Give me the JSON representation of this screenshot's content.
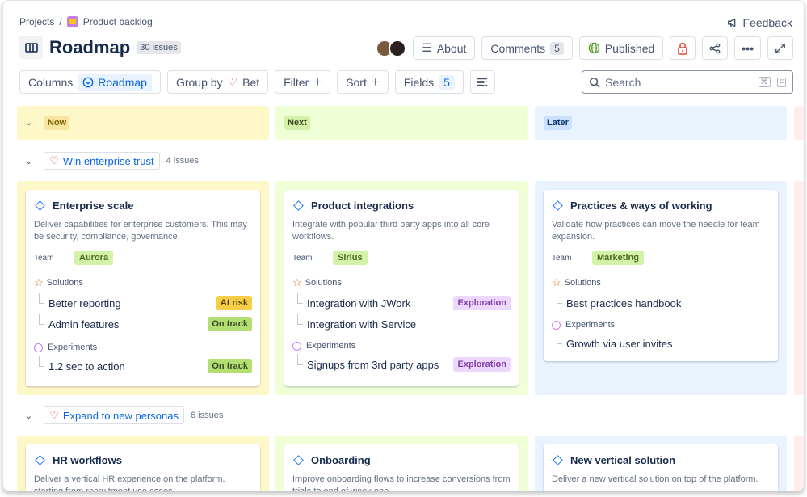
{
  "breadcrumb": {
    "root": "Projects",
    "separator": "/",
    "project": "Product backlog"
  },
  "feedback": "Feedback",
  "header": {
    "title": "Roadmap",
    "issue_count": "30 issues",
    "about": "About",
    "comments": "Comments",
    "comments_count": "5",
    "published": "Published"
  },
  "toolbar": {
    "columns": "Columns",
    "columns_value": "Roadmap",
    "group_by": "Group by",
    "group_value": "Bet",
    "filter": "Filter",
    "sort": "Sort",
    "fields": "Fields",
    "fields_count": "5",
    "search_placeholder": "Search",
    "kbd1": "⌘",
    "kbd2": "F"
  },
  "columns": [
    {
      "label": "Now",
      "color": "#f8e6a0"
    },
    {
      "label": "Next",
      "color": "#d3f1a7"
    },
    {
      "label": "Later",
      "color": "#cce0ff"
    }
  ],
  "groups": [
    {
      "label": "Win enterprise trust",
      "count": "4 issues",
      "cards": [
        {
          "title": "Enterprise scale",
          "desc": "Deliver capabilities for enterprise customers. This may be security, compliance, governance.",
          "team_label": "Team",
          "team": "Aurora",
          "solutions_label": "Solutions",
          "solutions": [
            {
              "name": "Better reporting",
              "status": "At risk"
            },
            {
              "name": "Admin features",
              "status": "On track"
            }
          ],
          "experiments_label": "Experiments",
          "experiments": [
            {
              "name": "1.2 sec to action",
              "status": "On track"
            }
          ]
        },
        {
          "title": "Product integrations",
          "desc": "Integrate with popular third party apps into all core workflows.",
          "team_label": "Team",
          "team": "Sirius",
          "solutions_label": "Solutions",
          "solutions": [
            {
              "name": "Integration with JWork",
              "status": "Exploration"
            },
            {
              "name": "Integration with Service",
              "status": ""
            }
          ],
          "experiments_label": "Experiments",
          "experiments": [
            {
              "name": "Signups from 3rd party apps",
              "status": "Exploration"
            }
          ]
        },
        {
          "title": "Practices & ways of working",
          "desc": "Validate how practices can move the needle for team expansion.",
          "team_label": "Team",
          "team": "Marketing",
          "solutions_label": "Solutions",
          "solutions": [
            {
              "name": "Best practices handbook",
              "status": ""
            }
          ],
          "experiments_label": "Experiments",
          "experiments": [
            {
              "name": "Growth via user invites",
              "status": ""
            }
          ]
        }
      ]
    },
    {
      "label": "Expand to new personas",
      "count": "6 issues",
      "cards": [
        {
          "title": "HR workflows",
          "desc": "Deliver a vertical HR experience on the platform, starting from recruitment use cases."
        },
        {
          "title": "Onboarding",
          "desc": "Improve onboarding flows to increase conversions from trials to end of week one."
        },
        {
          "title": "New vertical solution",
          "desc": "Deliver a new vertical solution  on top of the platform."
        }
      ]
    }
  ]
}
